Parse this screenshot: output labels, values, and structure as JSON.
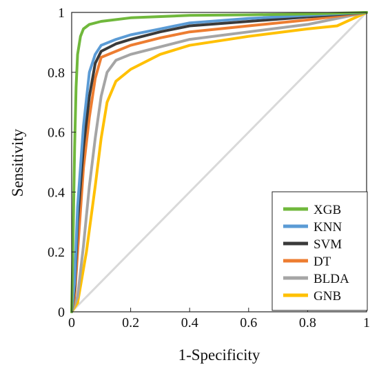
{
  "chart_data": {
    "type": "line",
    "title": "",
    "xlabel": "1-Specificity",
    "ylabel": "Sensitivity",
    "xlim": [
      0,
      1
    ],
    "ylim": [
      0,
      1
    ],
    "x_ticks": [
      "0",
      "0.2",
      "0.4",
      "0.6",
      "0.8",
      "1"
    ],
    "y_ticks": [
      "0",
      "0.2",
      "0.4",
      "0.6",
      "0.8",
      "1"
    ],
    "grid": false,
    "legend_position": "bottom-right",
    "reference_line": {
      "x": [
        0,
        1
      ],
      "y": [
        0,
        1
      ],
      "color": "#d9d9d9"
    },
    "series": [
      {
        "name": "XGB",
        "color": "#70b83c",
        "x": [
          0,
          0.005,
          0.01,
          0.015,
          0.02,
          0.03,
          0.04,
          0.06,
          0.1,
          0.2,
          0.4,
          0.6,
          0.8,
          1
        ],
        "y": [
          0,
          0.25,
          0.55,
          0.75,
          0.86,
          0.92,
          0.945,
          0.96,
          0.97,
          0.982,
          0.99,
          0.992,
          0.995,
          1
        ]
      },
      {
        "name": "KNN",
        "color": "#5b9bd5",
        "x": [
          0,
          0.01,
          0.02,
          0.04,
          0.06,
          0.08,
          0.1,
          0.15,
          0.2,
          0.3,
          0.4,
          0.6,
          0.8,
          1
        ],
        "y": [
          0,
          0.1,
          0.35,
          0.62,
          0.8,
          0.86,
          0.89,
          0.91,
          0.925,
          0.945,
          0.965,
          0.98,
          0.99,
          1
        ]
      },
      {
        "name": "SVM",
        "color": "#3a3a3a",
        "x": [
          0,
          0.01,
          0.02,
          0.04,
          0.06,
          0.08,
          0.1,
          0.15,
          0.2,
          0.3,
          0.4,
          0.6,
          0.8,
          1
        ],
        "y": [
          0,
          0.08,
          0.3,
          0.55,
          0.72,
          0.83,
          0.87,
          0.895,
          0.91,
          0.935,
          0.955,
          0.97,
          0.985,
          1
        ]
      },
      {
        "name": "DT",
        "color": "#ed7d31",
        "x": [
          0,
          0.01,
          0.02,
          0.04,
          0.06,
          0.08,
          0.1,
          0.15,
          0.2,
          0.3,
          0.4,
          0.6,
          0.8,
          1
        ],
        "y": [
          0,
          0.05,
          0.2,
          0.48,
          0.65,
          0.78,
          0.85,
          0.87,
          0.89,
          0.915,
          0.935,
          0.955,
          0.975,
          1
        ]
      },
      {
        "name": "BLDA",
        "color": "#a5a5a5",
        "x": [
          0,
          0.02,
          0.04,
          0.06,
          0.08,
          0.1,
          0.12,
          0.15,
          0.2,
          0.3,
          0.4,
          0.6,
          0.8,
          1
        ],
        "y": [
          0,
          0.05,
          0.22,
          0.42,
          0.58,
          0.72,
          0.8,
          0.84,
          0.86,
          0.885,
          0.91,
          0.935,
          0.96,
          1
        ]
      },
      {
        "name": "GNB",
        "color": "#ffc000",
        "x": [
          0,
          0.02,
          0.05,
          0.08,
          0.1,
          0.12,
          0.15,
          0.2,
          0.3,
          0.4,
          0.6,
          0.8,
          0.9,
          1
        ],
        "y": [
          0,
          0.03,
          0.2,
          0.42,
          0.58,
          0.7,
          0.77,
          0.81,
          0.86,
          0.89,
          0.92,
          0.945,
          0.955,
          1
        ]
      }
    ]
  }
}
